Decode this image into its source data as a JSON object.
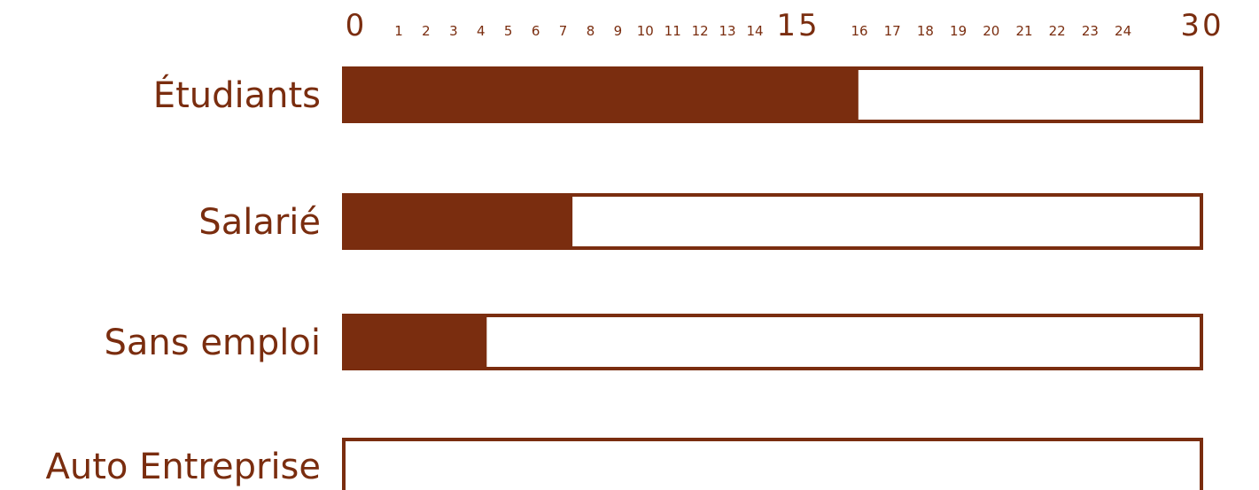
{
  "chart_data": {
    "type": "bar",
    "orientation": "horizontal",
    "categories": [
      "Étudiants",
      "Salarié",
      "Sans emploi",
      "Auto Entreprise"
    ],
    "values": [
      18,
      8,
      5,
      0
    ],
    "xlim": [
      0,
      30
    ],
    "tick_labels": [
      "0",
      "1",
      "2",
      "3",
      "4",
      "5",
      "6",
      "7",
      "8",
      "9",
      "10",
      "11",
      "12",
      "13",
      "14",
      "15",
      "16",
      "17",
      "18",
      "19",
      "20",
      "21",
      "22",
      "23",
      "24",
      "30"
    ],
    "major_ticks": [
      "0",
      "15",
      "30"
    ],
    "tick_position": "top",
    "grid": false,
    "legend": "none",
    "colors": {
      "bar_fill": "#7a2d0f",
      "bar_outline": "#7a2d0f",
      "label_text": "#7a2d0f",
      "background": "#ffffff"
    }
  }
}
